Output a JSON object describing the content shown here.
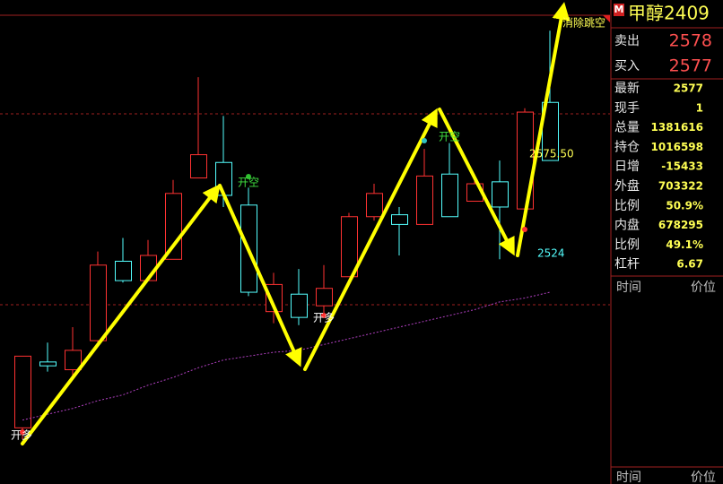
{
  "chart_data": {
    "type": "candlestick",
    "ylim": [
      2405,
      2647
    ],
    "up_color": "#ff3232",
    "down_color": "#54ffff",
    "ma_color": "#b040c0",
    "candles": [
      {
        "open": 2434,
        "high": 2471,
        "low": 2428,
        "close": 2471
      },
      {
        "open": 2468,
        "high": 2478,
        "low": 2463,
        "close": 2466
      },
      {
        "open": 2464,
        "high": 2486,
        "low": 2461,
        "close": 2474
      },
      {
        "open": 2479,
        "high": 2525,
        "low": 2478,
        "close": 2518
      },
      {
        "open": 2520,
        "high": 2532,
        "low": 2509,
        "close": 2510
      },
      {
        "open": 2510,
        "high": 2531,
        "low": 2510,
        "close": 2523
      },
      {
        "open": 2521,
        "high": 2562,
        "low": 2521,
        "close": 2555
      },
      {
        "open": 2563,
        "high": 2615,
        "low": 2563,
        "close": 2575
      },
      {
        "open": 2571,
        "high": 2595,
        "low": 2548,
        "close": 2554
      },
      {
        "open": 2549,
        "high": 2558,
        "low": 2502,
        "close": 2504
      },
      {
        "open": 2494,
        "high": 2514,
        "low": 2488,
        "close": 2508
      },
      {
        "open": 2503,
        "high": 2516,
        "low": 2487,
        "close": 2491
      },
      {
        "open": 2497,
        "high": 2518,
        "low": 2493,
        "close": 2506
      },
      {
        "open": 2512,
        "high": 2545,
        "low": 2512,
        "close": 2543
      },
      {
        "open": 2543,
        "high": 2560,
        "low": 2541,
        "close": 2555
      },
      {
        "open": 2544,
        "high": 2548,
        "low": 2523,
        "close": 2539
      },
      {
        "open": 2539,
        "high": 2578,
        "low": 2539,
        "close": 2564
      },
      {
        "open": 2565,
        "high": 2581,
        "low": 2543,
        "close": 2543
      },
      {
        "open": 2551,
        "high": 2565,
        "low": 2551,
        "close": 2560
      },
      {
        "open": 2561,
        "high": 2572,
        "low": 2521,
        "close": 2548
      },
      {
        "open": 2547,
        "high": 2599,
        "low": 2546,
        "close": 2597
      },
      {
        "open": 2602,
        "high": 2639,
        "low": 2572,
        "close": 2572
      }
    ],
    "ma": [
      2438,
      2441,
      2444,
      2448,
      2451,
      2456,
      2460,
      2465,
      2469,
      2471,
      2473,
      2474,
      2477,
      2480,
      2483,
      2486,
      2489,
      2492,
      2495,
      2499,
      2501,
      2504
    ],
    "annotations": {
      "open_long_1": "开多",
      "open_short_1": "开空",
      "open_long_2": "开多",
      "open_short_2": "开空",
      "high_label": "2575.50",
      "low_label": "2524",
      "clear_gap": "消除跳空"
    }
  },
  "panel": {
    "flag": "M",
    "symbol": "甲醇2409",
    "quotes": [
      {
        "label": "卖出",
        "value": "2578"
      },
      {
        "label": "买入",
        "value": "2577"
      }
    ],
    "stats": [
      {
        "label": "最新",
        "value": "2577"
      },
      {
        "label": "现手",
        "value": "1"
      },
      {
        "label": "总量",
        "value": "1381616"
      },
      {
        "label": "持仓",
        "value": "1016598"
      },
      {
        "label": "日增",
        "value": "-15433"
      },
      {
        "label": "外盘",
        "value": "703322"
      },
      {
        "label": "比例",
        "value": "50.9%"
      },
      {
        "label": "内盘",
        "value": "678295"
      },
      {
        "label": "比例",
        "value": "49.1%"
      },
      {
        "label": "杠杆",
        "value": "6.67"
      }
    ],
    "ticks_header": {
      "time": "时间",
      "price": "价位"
    },
    "ticks_footer": {
      "time": "时间",
      "price": "价位"
    }
  }
}
